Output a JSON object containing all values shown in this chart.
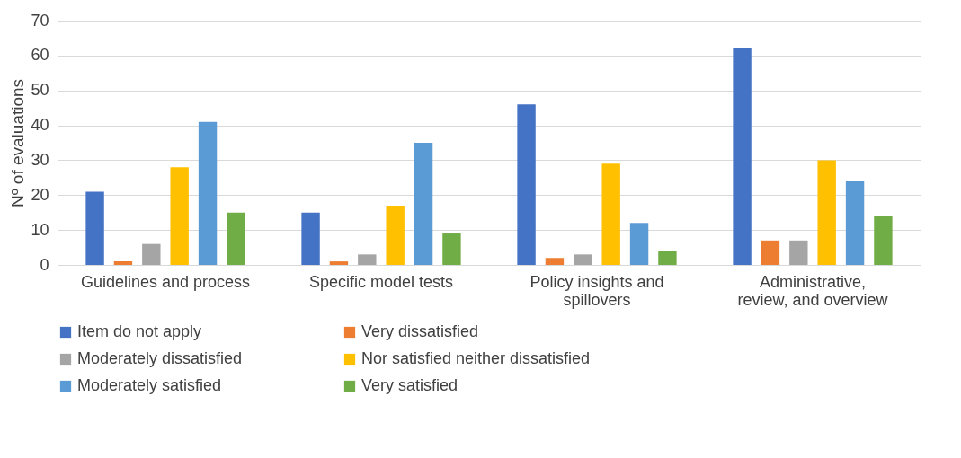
{
  "chart_data": {
    "type": "bar",
    "ylabel": "Nº of evaluations",
    "categories": [
      "Guidelines and process",
      "Specific model tests",
      "Policy insights and spillovers",
      "Administrative, review, and overview"
    ],
    "series": [
      {
        "name": "Item do not apply",
        "color": "#4472c4",
        "values": [
          21,
          15,
          46,
          62
        ]
      },
      {
        "name": "Very dissatisfied",
        "color": "#ed7d31",
        "values": [
          1,
          1,
          2,
          7
        ]
      },
      {
        "name": "Moderately dissatisfied",
        "color": "#a5a5a5",
        "values": [
          6,
          3,
          3,
          7
        ]
      },
      {
        "name": "Nor satisfied neither dissatisfied",
        "color": "#ffc000",
        "values": [
          28,
          17,
          29,
          30
        ]
      },
      {
        "name": "Moderately satisfied",
        "color": "#5b9bd5",
        "values": [
          41,
          35,
          12,
          24
        ]
      },
      {
        "name": "Very satisfied",
        "color": "#70ad47",
        "values": [
          15,
          9,
          4,
          14
        ]
      }
    ],
    "ylim": [
      0,
      70
    ],
    "yticks": [
      0,
      10,
      20,
      30,
      40,
      50,
      60,
      70
    ],
    "grid": "y",
    "legend": "bottom"
  }
}
